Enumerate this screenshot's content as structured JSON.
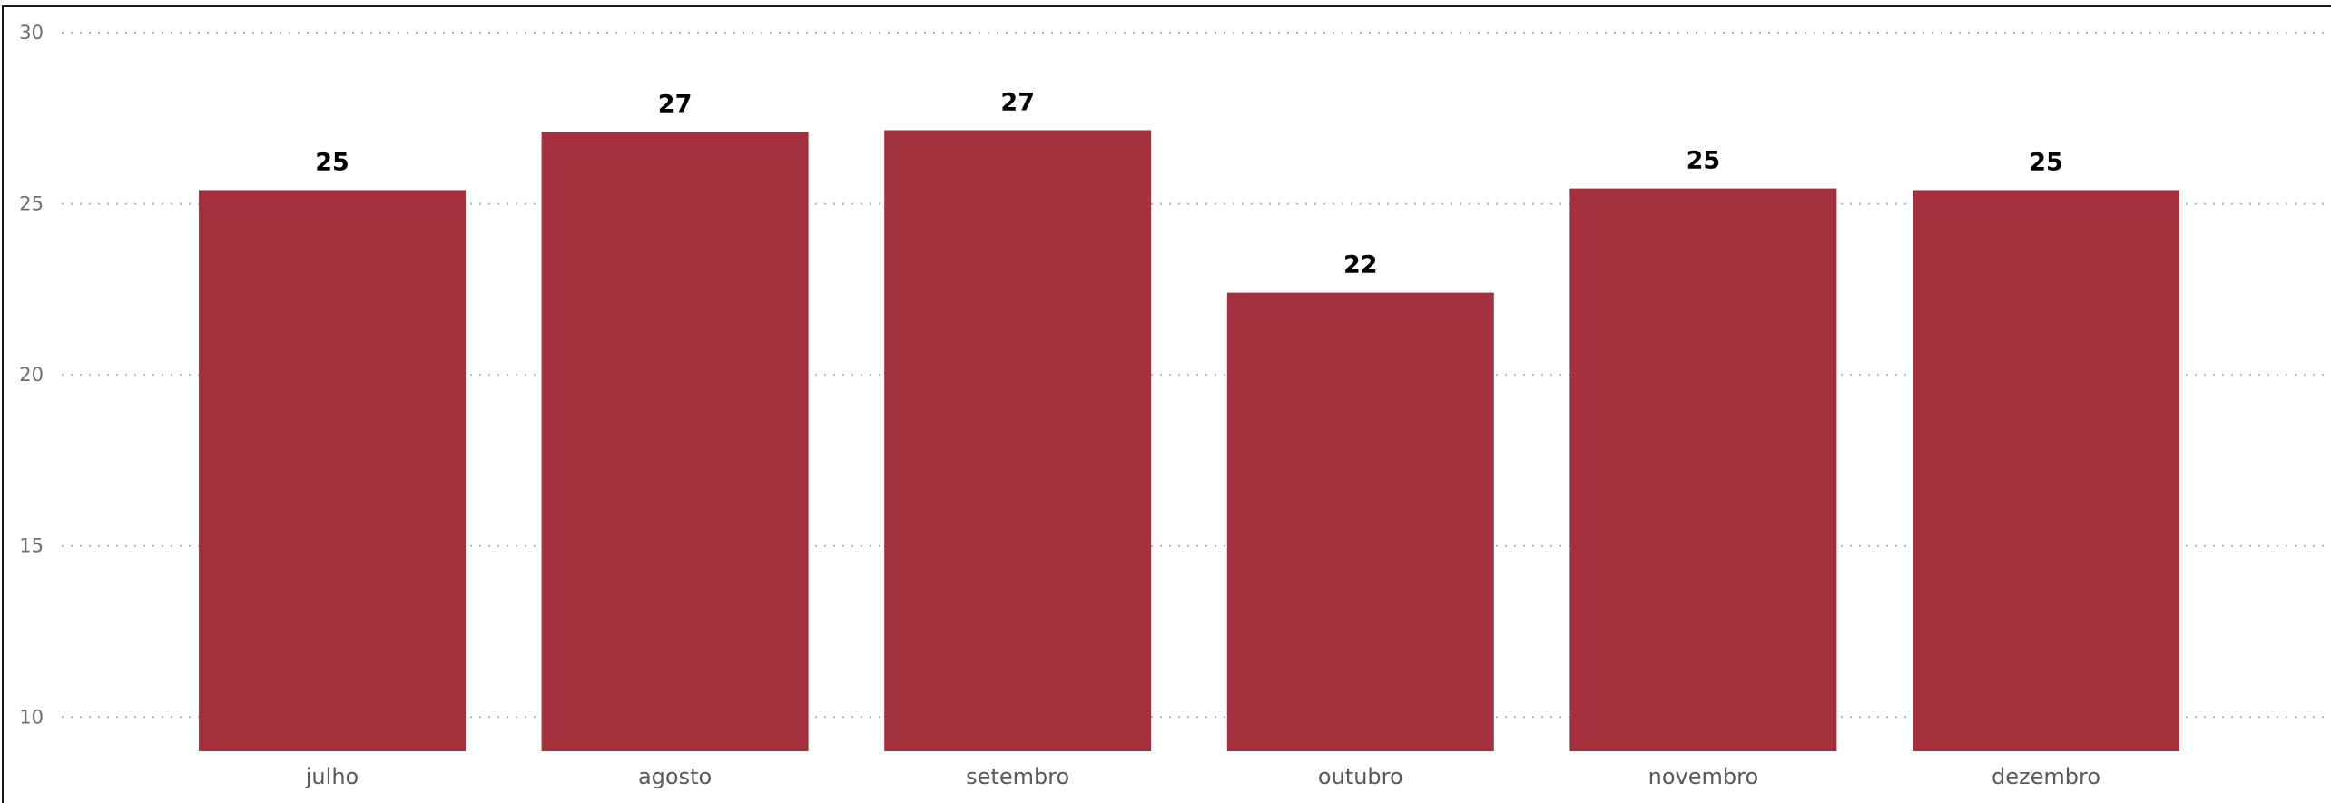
{
  "chart_data": {
    "type": "bar",
    "title": "",
    "xlabel": "",
    "ylabel": "",
    "categories": [
      "julho",
      "agosto",
      "setembro",
      "outubro",
      "novembro",
      "dezembro"
    ],
    "values": [
      25.4,
      27.1,
      27.15,
      22.4,
      25.45,
      25.4
    ],
    "data_labels": [
      "25",
      "27",
      "27",
      "22",
      "25",
      "25"
    ],
    "ylim": [
      9,
      30
    ],
    "yticks": [
      10,
      15,
      20,
      25,
      30
    ],
    "grid": true,
    "legend": "none",
    "bar_color": "#a3323e"
  }
}
